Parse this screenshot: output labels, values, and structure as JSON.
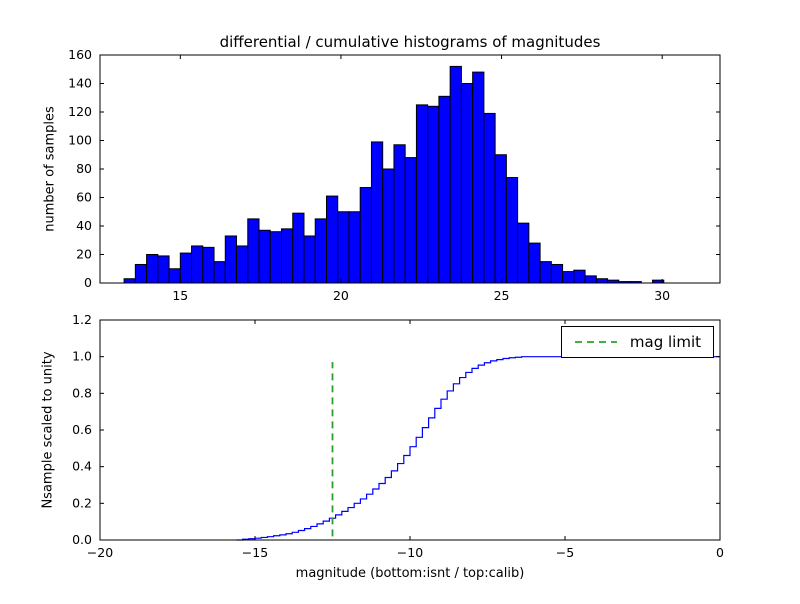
{
  "figure": {
    "bg": "#ffffff",
    "spine_color": "#000000"
  },
  "chart_data": [
    {
      "type": "bar",
      "title": "differential / cumulative histograms of magnitudes",
      "ylabel": "number of samples",
      "xlim": [
        12.5,
        31.8
      ],
      "ylim": [
        0,
        160
      ],
      "xticks": [
        15,
        20,
        25,
        30
      ],
      "xtick_labels": [
        "15",
        "20",
        "25",
        "30"
      ],
      "yticks": [
        0,
        20,
        40,
        60,
        80,
        100,
        120,
        140,
        160
      ],
      "ytick_labels": [
        "0",
        "20",
        "40",
        "60",
        "80",
        "100",
        "120",
        "140",
        "160"
      ],
      "bin_start": 13.25,
      "bin_width": 0.35,
      "values": [
        3,
        13,
        20,
        19,
        10,
        21,
        26,
        25,
        15,
        33,
        26,
        45,
        37,
        36,
        38,
        49,
        33,
        45,
        61,
        50,
        50,
        67,
        99,
        80,
        97,
        88,
        125,
        124,
        131,
        152,
        140,
        148,
        119,
        90,
        74,
        42,
        28,
        15,
        13,
        8,
        9,
        5,
        3,
        2,
        1,
        1,
        0,
        2
      ],
      "bar_color": "#0000ff",
      "edge_color": "#000000",
      "grid": false
    },
    {
      "type": "line",
      "ylabel": "Nsample scaled to unity",
      "xlabel": "magnitude (bottom:isnt / top:calib)",
      "xlim": [
        -20,
        0
      ],
      "ylim": [
        0,
        1.2
      ],
      "xticks": [
        -20,
        -15,
        -10,
        -5,
        0
      ],
      "xtick_labels": [
        "−20",
        "−15",
        "−10",
        "−5",
        "0"
      ],
      "yticks": [
        0,
        0.2,
        0.4,
        0.6,
        0.8,
        1.0,
        1.2
      ],
      "ytick_labels": [
        "0.0",
        "0.2",
        "0.4",
        "0.6",
        "0.8",
        "1.0",
        "1.2"
      ],
      "step": true,
      "x": [
        -15.6,
        -15.4,
        -15.2,
        -15.0,
        -14.8,
        -14.6,
        -14.4,
        -14.2,
        -14.0,
        -13.8,
        -13.6,
        -13.4,
        -13.2,
        -13.0,
        -12.8,
        -12.6,
        -12.4,
        -12.2,
        -12.0,
        -11.8,
        -11.6,
        -11.4,
        -11.2,
        -11.0,
        -10.8,
        -10.6,
        -10.4,
        -10.2,
        -10.0,
        -9.8,
        -9.6,
        -9.4,
        -9.2,
        -9.0,
        -8.8,
        -8.6,
        -8.4,
        -8.2,
        -8.0,
        -7.8,
        -7.6,
        -7.4,
        -7.2,
        -7.0,
        -6.8,
        -6.6,
        -6.4,
        0
      ],
      "y": [
        0.0,
        0.004,
        0.007,
        0.01,
        0.014,
        0.018,
        0.023,
        0.028,
        0.034,
        0.042,
        0.052,
        0.062,
        0.074,
        0.088,
        0.103,
        0.119,
        0.137,
        0.156,
        0.177,
        0.2,
        0.224,
        0.25,
        0.278,
        0.308,
        0.341,
        0.377,
        0.417,
        0.461,
        0.509,
        0.56,
        0.613,
        0.666,
        0.718,
        0.768,
        0.813,
        0.852,
        0.886,
        0.914,
        0.936,
        0.954,
        0.967,
        0.977,
        0.984,
        0.99,
        0.994,
        0.997,
        1.0,
        1.0
      ],
      "line_color": "#0000ff",
      "vline": {
        "x": -12.5,
        "y0": 0.02,
        "y1": 0.97,
        "color": "#2ca02c",
        "style": "dashed"
      },
      "legend": {
        "label": "mag limit",
        "position": "upper right"
      },
      "grid": false
    }
  ]
}
